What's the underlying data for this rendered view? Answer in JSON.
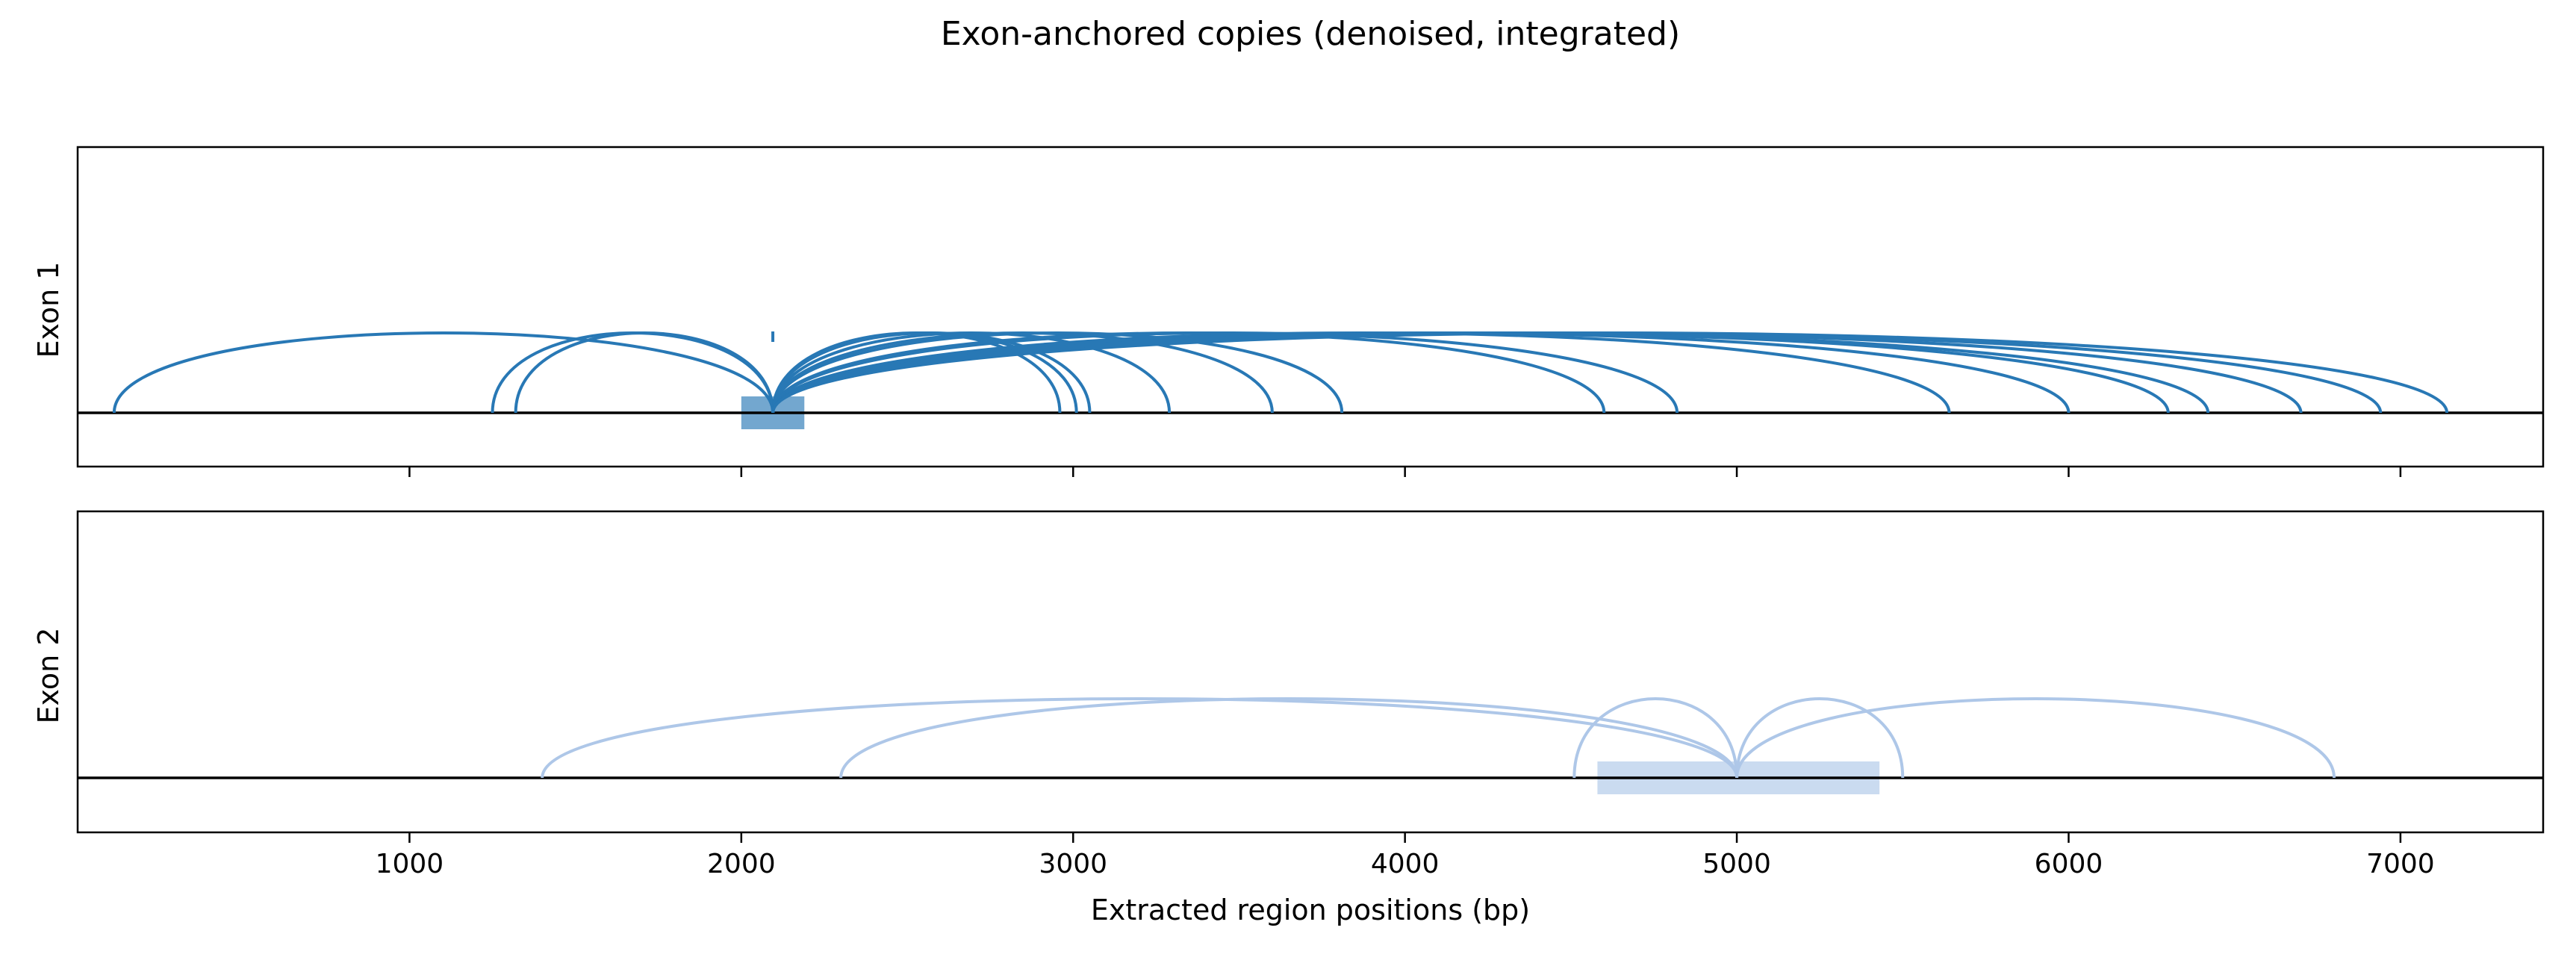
{
  "figure": {
    "title": "Exon-anchored copies (denoised, integrated)",
    "xlabel": "Extracted region positions (bp)"
  },
  "chart_data": {
    "type": "arc",
    "title": "Exon-anchored copies (denoised, integrated)",
    "xlabel": "Extracted region positions (bp)",
    "xlim": [
      0,
      7430
    ],
    "xticks": [
      1000,
      2000,
      3000,
      4000,
      5000,
      6000,
      7000
    ],
    "xtick_labels": [
      "1000",
      "2000",
      "3000",
      "4000",
      "5000",
      "6000",
      "7000"
    ],
    "shared_x": true,
    "panels": [
      {
        "ylabel": "Exon 1",
        "color": "#2878b5",
        "exon": {
          "start": 2000,
          "end": 2190
        },
        "anchor": 2095,
        "marker": {
          "x": 2095
        },
        "targets": [
          110,
          1250,
          1320,
          2960,
          3010,
          3050,
          3290,
          3600,
          3810,
          4600,
          4820,
          5640,
          6000,
          6300,
          6420,
          6700,
          6940,
          7140
        ]
      },
      {
        "ylabel": "Exon 2",
        "color": "#aec7e8",
        "exon": {
          "start": 4580,
          "end": 5430
        },
        "anchor": 5000,
        "targets": [
          1400,
          2300,
          4510,
          5500,
          6800
        ]
      }
    ]
  }
}
